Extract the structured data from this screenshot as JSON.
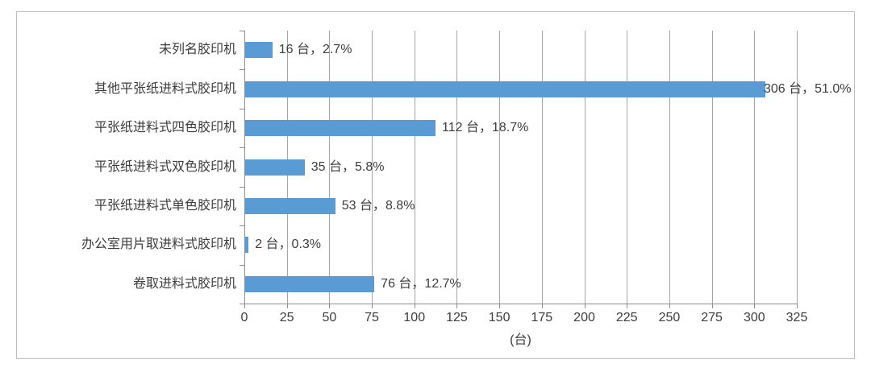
{
  "chart_data": {
    "type": "bar",
    "orientation": "horizontal",
    "title": "",
    "xlabel": "(台)",
    "ylabel": "",
    "categories": [
      "未列名胶印机",
      "其他平张纸进料式胶印机",
      "平张纸进料式四色胶印机",
      "平张纸进料式双色胶印机",
      "平张纸进料式单色胶印机",
      "办公室用片取进料式胶印机",
      "卷取进料式胶印机"
    ],
    "values": [
      16,
      306,
      112,
      35,
      53,
      2,
      76
    ],
    "percents": [
      2.7,
      51.0,
      18.7,
      5.8,
      8.8,
      0.3,
      12.7
    ],
    "labels": [
      "16 台，2.7%",
      "306 台，51.0%",
      "112 台，18.7%",
      "35 台，5.8%",
      "53 台，8.8%",
      "2 台，0.3%",
      "76 台，12.7%"
    ],
    "xlim": [
      0,
      325
    ],
    "xticks": [
      0,
      25,
      50,
      75,
      100,
      125,
      150,
      175,
      200,
      225,
      250,
      275,
      300,
      325
    ],
    "grid": true,
    "legend": false
  },
  "colors": {
    "bar": "#5b9bd5",
    "gridline": "#a6a6a6",
    "axis": "#8c8c8c",
    "frame_border": "#bdbdbd",
    "text": "#3d3d3d",
    "background": "#ffffff"
  }
}
